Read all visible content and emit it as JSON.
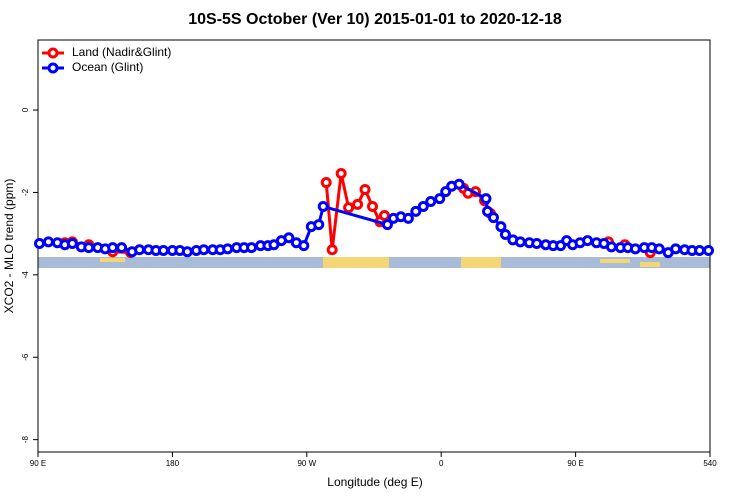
{
  "chart_data": {
    "type": "line",
    "title": "10S-5S October (Ver 10)   2015-01-01 to 2020-12-18",
    "x_label": "Longitude (deg E)",
    "y_label": "XCO2 - MLO trend (ppm)",
    "xlim": [
      90,
      540
    ],
    "ylim": [
      -8.3,
      1.7
    ],
    "xticks": [
      {
        "value": 90,
        "label": "90 E"
      },
      180,
      {
        "value": 270,
        "label": "90 W"
      },
      {
        "value": 360,
        "label": "0"
      },
      {
        "value": 450,
        "label": "90 E"
      },
      540
    ],
    "yticks": [
      0,
      -2,
      -4,
      -6,
      -8
    ],
    "legend": "top-left",
    "series": [
      {
        "name": "Land (Nadir&Glint)",
        "color": "#ff0000",
        "x": [
          108,
          113,
          118,
          124,
          132,
          140,
          152,
          200,
          283,
          287,
          293,
          298,
          304,
          309,
          314,
          319,
          322,
          350,
          375,
          378,
          383,
          389,
          393,
          430,
          472,
          478,
          483,
          490,
          500
        ],
        "values": [
          -3.22,
          -3.2,
          null,
          -3.27,
          null,
          -3.44,
          -3.46,
          null,
          -1.76,
          -3.39,
          -1.54,
          -2.37,
          -2.29,
          -1.93,
          -2.34,
          -2.71,
          -2.56,
          null,
          -1.9,
          -2.02,
          -1.98,
          -2.2,
          -2.51,
          null,
          -3.2,
          null,
          -3.27,
          null,
          -3.46
        ]
      },
      {
        "name": "Ocean (Glint)",
        "color": "#0000ff",
        "x": [
          91,
          97,
          103,
          108,
          113,
          119,
          124,
          130,
          135,
          140,
          146,
          153,
          158,
          164,
          169,
          174,
          180,
          185,
          190,
          196,
          201,
          207,
          212,
          217,
          223,
          228,
          233,
          239,
          244,
          248,
          253,
          258,
          263,
          268,
          273,
          278,
          281,
          324,
          328,
          333,
          338,
          343,
          348,
          353,
          359,
          363,
          367,
          372,
          390,
          391,
          395,
          400,
          403,
          408,
          413,
          419,
          424,
          430,
          435,
          440,
          444,
          448,
          453,
          458,
          464,
          469,
          474,
          480,
          485,
          490,
          496,
          501,
          506,
          512,
          517,
          523,
          528,
          533,
          539
        ],
        "values": [
          -3.24,
          -3.2,
          -3.22,
          -3.27,
          -3.24,
          -3.32,
          -3.34,
          -3.34,
          -3.37,
          -3.34,
          -3.34,
          -3.44,
          -3.39,
          -3.39,
          -3.41,
          -3.41,
          -3.41,
          -3.41,
          -3.44,
          -3.41,
          -3.39,
          -3.39,
          -3.39,
          -3.37,
          -3.34,
          -3.34,
          -3.34,
          -3.29,
          -3.29,
          -3.27,
          -3.17,
          -3.1,
          -3.22,
          -3.29,
          -2.83,
          -2.78,
          -2.34,
          -2.78,
          -2.63,
          -2.59,
          -2.63,
          -2.46,
          -2.34,
          -2.22,
          -2.15,
          -1.98,
          -1.85,
          -1.8,
          -2.15,
          -2.46,
          -2.61,
          -2.83,
          -3.02,
          -3.15,
          -3.2,
          -3.22,
          -3.24,
          -3.27,
          -3.29,
          -3.29,
          -3.17,
          -3.27,
          -3.22,
          -3.17,
          -3.22,
          -3.24,
          -3.32,
          -3.34,
          -3.34,
          -3.37,
          -3.34,
          -3.34,
          -3.37,
          -3.46,
          -3.37,
          -3.39,
          -3.41,
          -3.41,
          -3.41
        ]
      }
    ]
  }
}
